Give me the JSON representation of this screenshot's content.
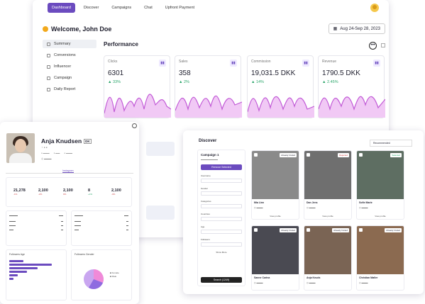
{
  "nav": {
    "items": [
      "Dashboard",
      "Discover",
      "Campaigns",
      "Chat",
      "Upfront Payment"
    ],
    "active": 0
  },
  "welcome": "Welcome, John Doe",
  "date_range": "Aug 24-Sep 28, 2023",
  "sidebar": {
    "items": [
      "Summary",
      "Conversions",
      "Influencer",
      "Campaign",
      "Daily Report"
    ]
  },
  "performance": {
    "title": "Performance",
    "cards": [
      {
        "label": "Clicks",
        "value": "6301",
        "change": "33%"
      },
      {
        "label": "Sales",
        "value": "358",
        "change": "2%"
      },
      {
        "label": "Commission",
        "value": "19,031.5 DKK",
        "change": "14%"
      },
      {
        "label": "Revenue",
        "value": "1790.5 DKK",
        "change": "2.45%"
      }
    ]
  },
  "profile": {
    "name": "Anja Knudsen",
    "country": "DK",
    "tab": "Instagram",
    "stats": [
      {
        "value": "21,278",
        "change": "-1%"
      },
      {
        "value": "2,100",
        "change": "-2%"
      },
      {
        "value": "2,100",
        "change": "0%"
      },
      {
        "value": "8",
        "change": "+1%"
      },
      {
        "value": "2,100",
        "change": "-3%"
      }
    ],
    "age_chart_title": "Followers Age",
    "gender_chart_title": "Followers Gender",
    "gender_legend": [
      "Female",
      "Male"
    ]
  },
  "discover": {
    "title": "Discover",
    "sort": "Recommended",
    "campaign": {
      "title": "Campaign 1",
      "remove_label": "Remove Selected",
      "search_label": "Search (1249)",
      "show_more": "Show More"
    },
    "filters": [
      "Username",
      "Gender",
      "Categories",
      "Countries",
      "Age",
      "Followers"
    ],
    "influencers": [
      {
        "name": "Mia Linn",
        "tag": "Already Invited",
        "shade": "#8a8a8a"
      },
      {
        "name": "Dan Jens",
        "tag": "Rejected",
        "shade": "#6f6f6f"
      },
      {
        "name": "Sofie Marie",
        "tag": "Selected",
        "shade": "#5e6e62"
      },
      {
        "name": "Sanne Carina",
        "tag": "Already Invited",
        "shade": "#4a4a52"
      },
      {
        "name": "Anja Knuds",
        "tag": "Already Invited",
        "shade": "#7a6454"
      },
      {
        "name": "Christian Møller",
        "tag": "Already Invited",
        "shade": "#8b6a50"
      }
    ],
    "view_profile": "View profile"
  },
  "colors": {
    "accent": "#6b4bbf",
    "chart_fill": "#e9b8f0",
    "chart_line": "#c15ad6",
    "positive": "#2aa56a"
  }
}
